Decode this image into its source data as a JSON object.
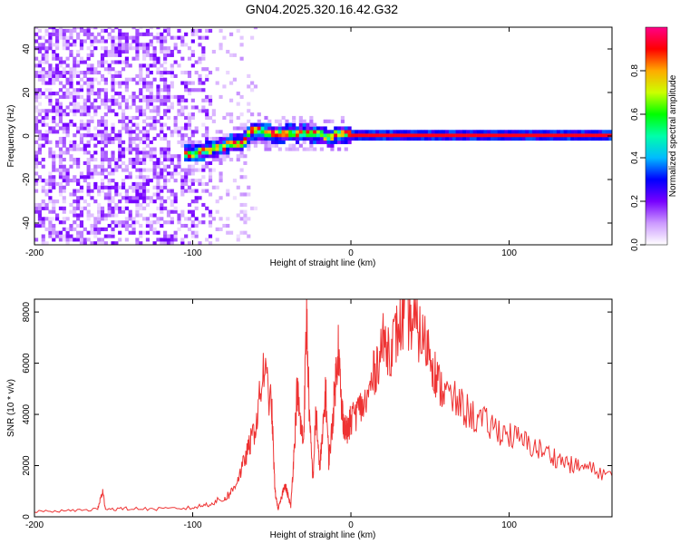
{
  "title": "GN04.2025.320.16.42.G32",
  "chart_data": [
    {
      "type": "heatmap",
      "xlabel": "Height of straight line (km)",
      "ylabel": "Frequency (Hz)",
      "xlim": [
        -200,
        165
      ],
      "ylim": [
        -50,
        50
      ],
      "x_ticks": [
        "-200",
        "-100",
        "0",
        "100"
      ],
      "y_ticks": [
        "-40",
        "-20",
        "0",
        "20",
        "40"
      ],
      "grid": false,
      "colorbar": {
        "label": "Normalized spectral amplitude",
        "range": [
          0,
          1
        ],
        "ticks": [
          "0.0",
          "0.2",
          "0.4",
          "0.6",
          "0.8"
        ],
        "colors": [
          "#ffffff",
          "#cc99ff",
          "#7700ff",
          "#0000ff",
          "#00bbff",
          "#00ffaa",
          "#00ff00",
          "#ccff00",
          "#ffaa00",
          "#ff0000",
          "#ff0088"
        ]
      },
      "ridge": {
        "x": [
          -106,
          -100,
          -95,
          -90,
          -85,
          -80,
          -75,
          -70,
          -65,
          -60,
          -55,
          -50,
          -45,
          -40,
          -35,
          -30,
          -25,
          -20,
          -15,
          -10,
          0,
          50,
          100,
          165
        ],
        "y": [
          -9,
          -9,
          -8,
          -7,
          -6,
          -5,
          -4,
          -4,
          1,
          2,
          1,
          0,
          0,
          1,
          0,
          1,
          0,
          0,
          -2,
          0,
          0,
          0,
          0,
          0
        ]
      }
    },
    {
      "type": "line",
      "xlabel": "Height of straight line (km)",
      "ylabel": "SNR (10 * v/v)",
      "xlim": [
        -200,
        165
      ],
      "ylim": [
        0,
        8500
      ],
      "x_ticks": [
        "-200",
        "-100",
        "0",
        "100"
      ],
      "y_ticks": [
        "0",
        "2000",
        "4000",
        "6000",
        "8000"
      ],
      "grid": false,
      "color": "#ee3333",
      "series": [
        {
          "x": [
            -200,
            -180,
            -160,
            -157,
            -155,
            -140,
            -120,
            -100,
            -90,
            -80,
            -75,
            -70,
            -65,
            -60,
            -55,
            -50,
            -48,
            -46,
            -44,
            -42,
            -40,
            -38,
            -36,
            -34,
            -32,
            -30,
            -28,
            -26,
            -24,
            -22,
            -20,
            -18,
            -16,
            -14,
            -12,
            -10,
            -8,
            -6,
            -4,
            -2,
            0,
            5,
            10,
            15,
            20,
            25,
            30,
            35,
            40,
            45,
            50,
            55,
            60,
            70,
            80,
            90,
            100,
            110,
            120,
            130,
            140,
            150,
            165
          ],
          "y": [
            200,
            230,
            300,
            1000,
            300,
            320,
            300,
            350,
            500,
            700,
            1000,
            1700,
            2600,
            3600,
            5800,
            4200,
            1000,
            300,
            700,
            1300,
            900,
            400,
            2500,
            5000,
            3700,
            2900,
            7800,
            3500,
            1500,
            4200,
            1900,
            3000,
            5000,
            2200,
            3400,
            5100,
            6700,
            4300,
            3500,
            3300,
            3800,
            4200,
            4500,
            5700,
            6800,
            6600,
            7300,
            7900,
            7500,
            7000,
            6500,
            5200,
            4800,
            4300,
            3800,
            3500,
            3200,
            2900,
            2600,
            2300,
            2000,
            1900,
            1600
          ]
        }
      ]
    }
  ]
}
